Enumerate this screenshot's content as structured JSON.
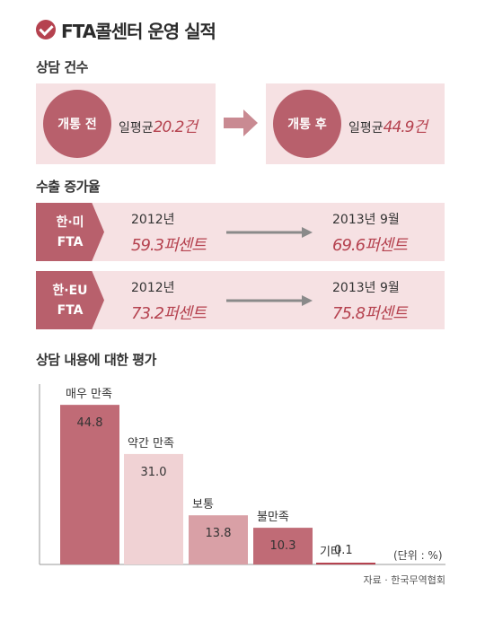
{
  "header": {
    "title": "FTA콜센터 운영 실적",
    "accent_color": "#b5424f",
    "icon": "check-circle-icon"
  },
  "consultations": {
    "label": "상담 건수",
    "before": {
      "badge": "개통 전",
      "prefix": "일평균",
      "value": "20.2건"
    },
    "after": {
      "badge": "개통 후",
      "prefix": "일평균",
      "value": "44.9건"
    }
  },
  "export_growth": {
    "label": "수출 증가율",
    "rows": [
      {
        "tag_line1": "한·미",
        "tag_line2": "FTA",
        "year_from": "2012년",
        "value_from": "59.3퍼센트",
        "year_to": "2013년 9월",
        "value_to": "69.6퍼센트"
      },
      {
        "tag_line1": "한·EU",
        "tag_line2": "FTA",
        "year_from": "2012년",
        "value_from": "73.2퍼센트",
        "year_to": "2013년 9월",
        "value_to": "75.8퍼센트"
      }
    ]
  },
  "evaluation": {
    "label": "상담 내용에 대한 평가",
    "unit_note": "(단위 : %)",
    "source": "자료 · 한국무역협회"
  },
  "chart_data": {
    "type": "bar",
    "title": "상담 내용에 대한 평가",
    "categories": [
      "매우 만족",
      "약간 만족",
      "보통",
      "불만족",
      "기타"
    ],
    "values": [
      44.8,
      31.0,
      13.8,
      10.3,
      0.1
    ],
    "value_labels": [
      "44.8",
      "31.0",
      "13.8",
      "10.3",
      "0.1"
    ],
    "colors": [
      "#c06b76",
      "#f0d2d4",
      "#d9a0a6",
      "#c06b76",
      "#b5424f"
    ],
    "ylim": [
      0,
      50
    ],
    "grid": false
  }
}
